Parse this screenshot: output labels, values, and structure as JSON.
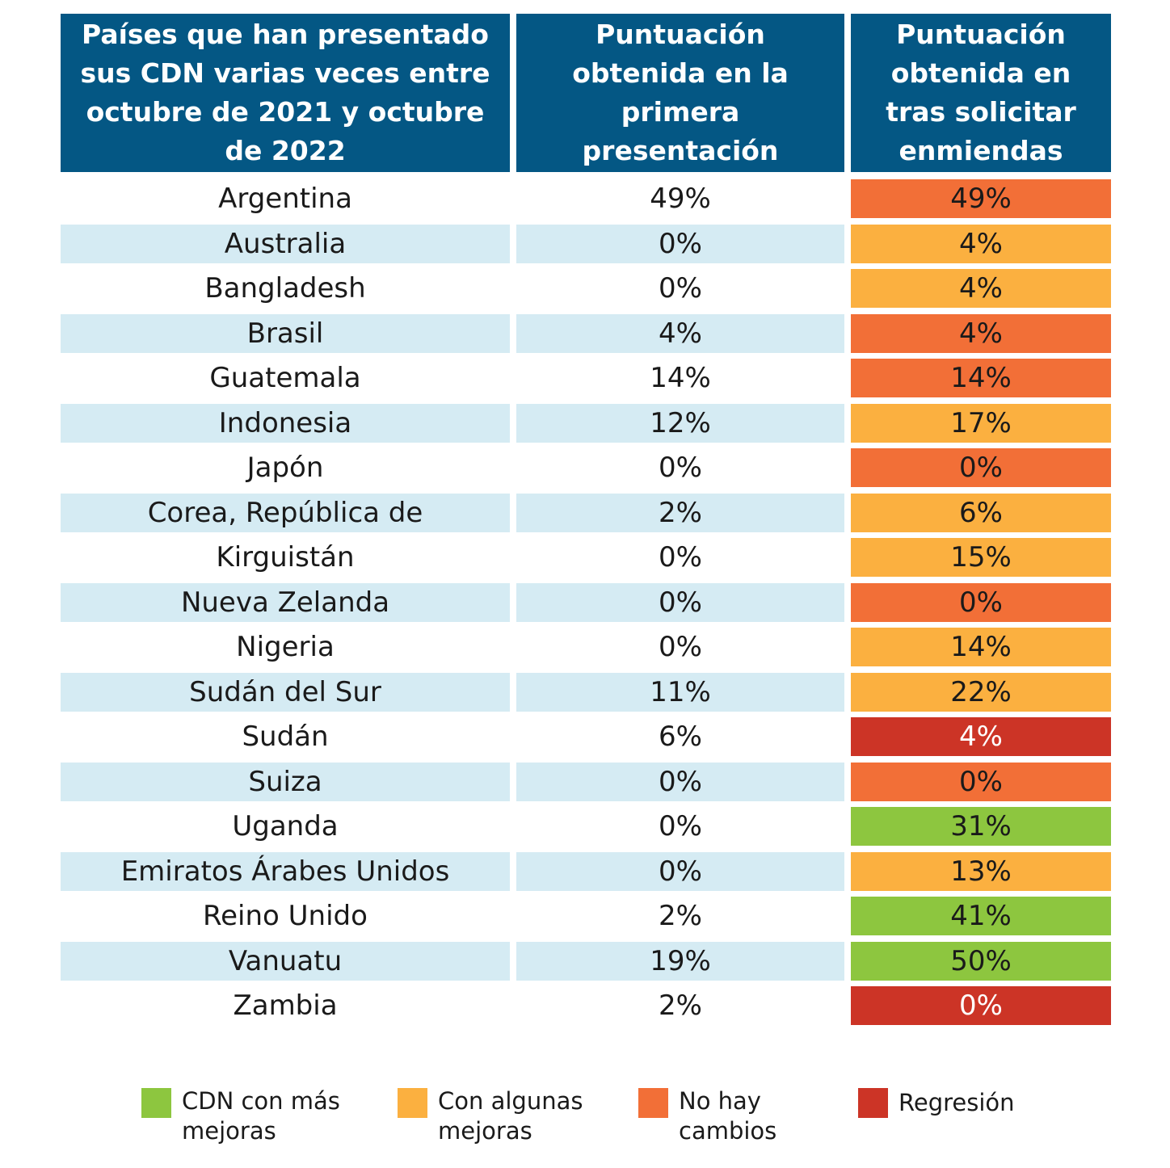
{
  "chart_data": {
    "type": "table",
    "columns": [
      "Países que han presentado sus CDN varias veces entre octubre de 2021 y octubre de 2022",
      "Puntuación obtenida en la primera presentación",
      "Puntuación obtenida en tras solicitar enmiendas"
    ],
    "rows": [
      {
        "country": "Argentina",
        "first": "49%",
        "after": "49%",
        "category": "no_change"
      },
      {
        "country": "Australia",
        "first": "0%",
        "after": "4%",
        "category": "some"
      },
      {
        "country": "Bangladesh",
        "first": "0%",
        "after": "4%",
        "category": "some"
      },
      {
        "country": "Brasil",
        "first": "4%",
        "after": "4%",
        "category": "no_change"
      },
      {
        "country": "Guatemala",
        "first": "14%",
        "after": "14%",
        "category": "no_change"
      },
      {
        "country": "Indonesia",
        "first": "12%",
        "after": "17%",
        "category": "some"
      },
      {
        "country": "Japón",
        "first": "0%",
        "after": "0%",
        "category": "no_change"
      },
      {
        "country": "Corea, República de",
        "first": "2%",
        "after": "6%",
        "category": "some"
      },
      {
        "country": "Kirguistán",
        "first": "0%",
        "after": "15%",
        "category": "some"
      },
      {
        "country": "Nueva Zelanda",
        "first": "0%",
        "after": "0%",
        "category": "no_change"
      },
      {
        "country": "Nigeria",
        "first": "0%",
        "after": "14%",
        "category": "some"
      },
      {
        "country": "Sudán del Sur",
        "first": "11%",
        "after": "22%",
        "category": "some"
      },
      {
        "country": "Sudán",
        "first": "6%",
        "after": "4%",
        "category": "regression"
      },
      {
        "country": "Suiza",
        "first": "0%",
        "after": "0%",
        "category": "no_change"
      },
      {
        "country": "Uganda",
        "first": "0%",
        "after": "31%",
        "category": "most"
      },
      {
        "country": "Emiratos Árabes Unidos",
        "first": "0%",
        "after": "13%",
        "category": "some"
      },
      {
        "country": "Reino Unido",
        "first": "2%",
        "after": "41%",
        "category": "most"
      },
      {
        "country": "Vanuatu",
        "first": "19%",
        "after": "50%",
        "category": "most"
      },
      {
        "country": "Zambia",
        "first": "2%",
        "after": "0%",
        "category": "regression"
      }
    ],
    "legend": [
      {
        "key": "most",
        "label": "CDN con más mejoras",
        "color": "#8dc63f"
      },
      {
        "key": "some",
        "label": "Con algunas mejoras",
        "color": "#fbb040"
      },
      {
        "key": "no_change",
        "label": "No hay cambios",
        "color": "#f26f37"
      },
      {
        "key": "regression",
        "label": "Regresión",
        "color": "#cc3426"
      }
    ]
  }
}
